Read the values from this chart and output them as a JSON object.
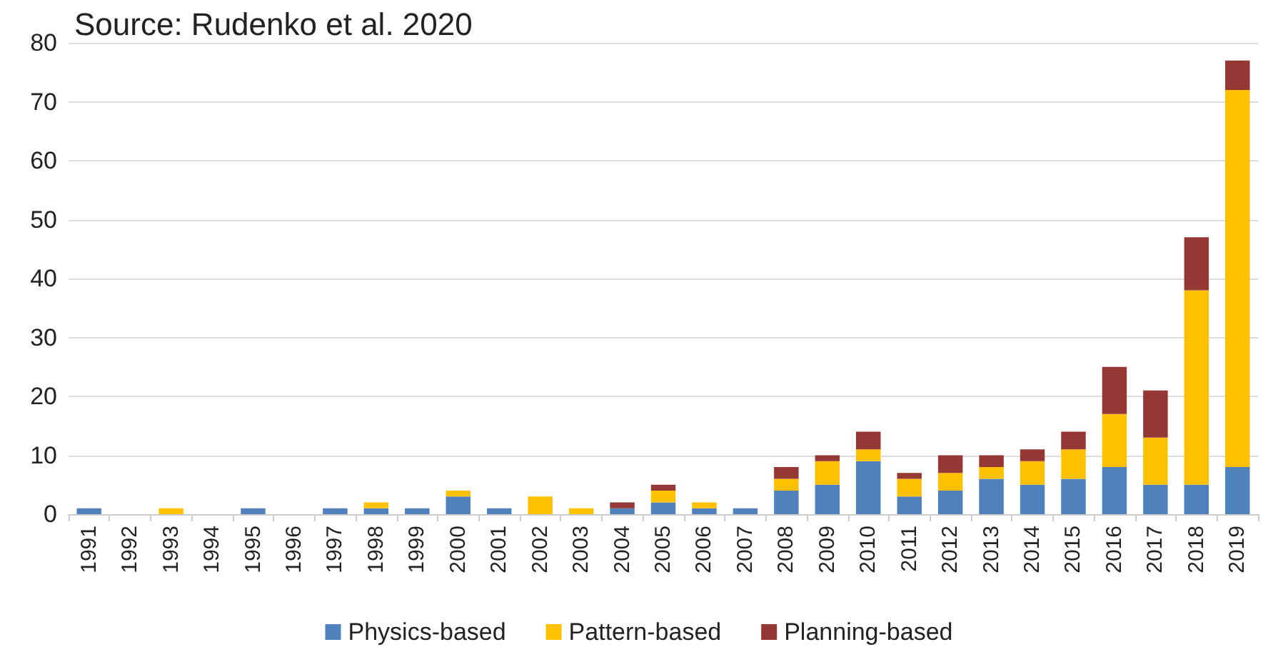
{
  "chart_data": {
    "type": "bar",
    "stacked": true,
    "annotations": [
      "Source: Rudenko et al. 2020"
    ],
    "categories": [
      "1991",
      "1992",
      "1993",
      "1994",
      "1995",
      "1996",
      "1997",
      "1998",
      "1999",
      "2000",
      "2001",
      "2002",
      "2003",
      "2004",
      "2005",
      "2006",
      "2007",
      "2008",
      "2009",
      "2010",
      "2011",
      "2012",
      "2013",
      "2014",
      "2015",
      "2016",
      "2017",
      "2018",
      "2019"
    ],
    "series": [
      {
        "name": "Physics-based",
        "color": "#4f81bd",
        "values": [
          1,
          0,
          0,
          0,
          1,
          0,
          1,
          1,
          1,
          3,
          1,
          0,
          0,
          1,
          2,
          1,
          1,
          4,
          5,
          9,
          3,
          4,
          6,
          5,
          6,
          8,
          5,
          5,
          8
        ]
      },
      {
        "name": "Pattern-based",
        "color": "#ffc000",
        "values": [
          0,
          0,
          1,
          0,
          0,
          0,
          0,
          1,
          0,
          1,
          0,
          3,
          1,
          0,
          2,
          1,
          0,
          2,
          4,
          2,
          3,
          3,
          2,
          4,
          5,
          9,
          8,
          33,
          64
        ]
      },
      {
        "name": "Planning-based",
        "color": "#953735",
        "values": [
          0,
          0,
          0,
          0,
          0,
          0,
          0,
          0,
          0,
          0,
          0,
          0,
          0,
          1,
          1,
          0,
          0,
          2,
          1,
          3,
          1,
          3,
          2,
          2,
          3,
          8,
          8,
          9,
          5
        ]
      }
    ],
    "ylim": [
      0,
      80
    ],
    "yticks": [
      0,
      10,
      20,
      30,
      40,
      50,
      60,
      70,
      80
    ],
    "grid": "y",
    "legend": "bottom"
  }
}
